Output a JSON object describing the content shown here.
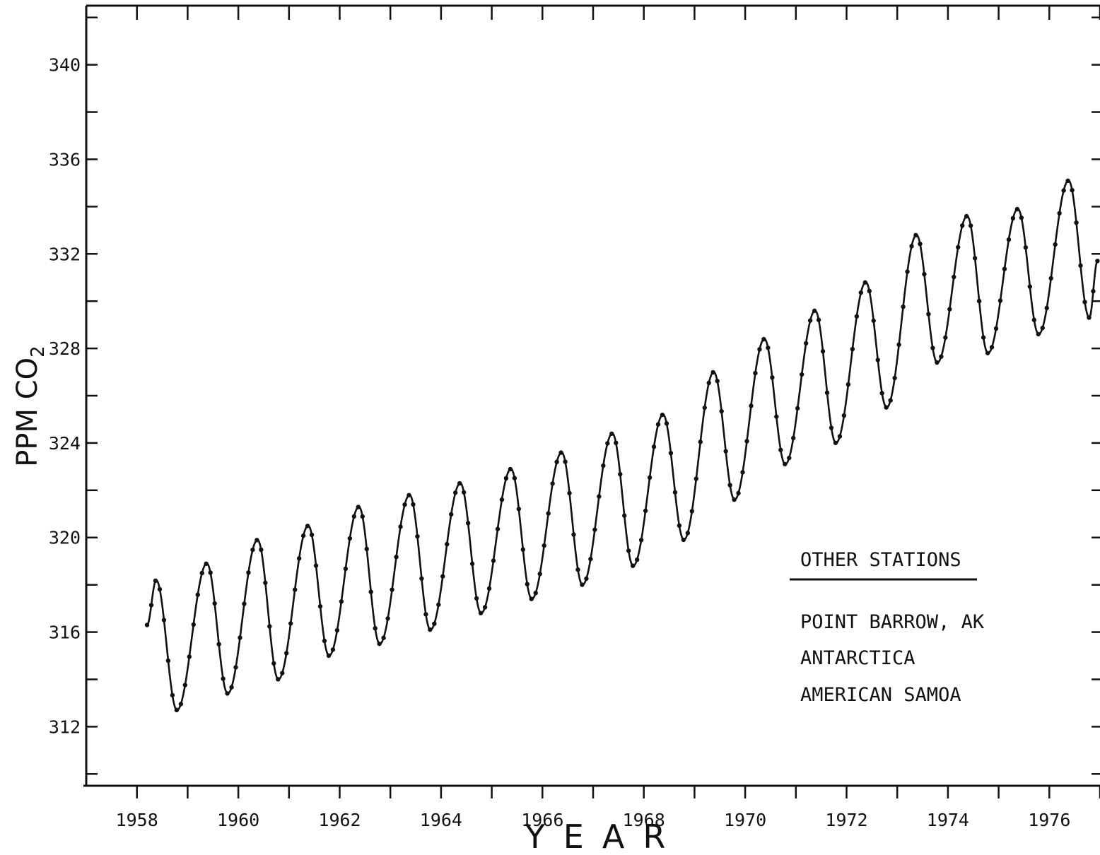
{
  "chart_data": {
    "type": "line",
    "title": "",
    "xlabel": "YEAR",
    "ylabel": "PPM CO",
    "ylabel_subscript": "2",
    "xlim": [
      1957,
      1977
    ],
    "ylim": [
      309.5,
      342.5
    ],
    "x_ticks": [
      1958,
      1960,
      1962,
      1964,
      1966,
      1968,
      1970,
      1972,
      1974,
      1976
    ],
    "x_tick_labels": [
      "1958",
      "1960",
      "1962",
      "1964",
      "1966",
      "1968",
      "1970",
      "1972",
      "1974",
      "1976"
    ],
    "y_ticks": [
      312,
      316,
      320,
      324,
      328,
      332,
      336,
      340
    ],
    "y_tick_labels": [
      "312",
      "316",
      "320",
      "324",
      "328",
      "332",
      "336",
      "340"
    ],
    "grid": false,
    "annual_extremes": [
      {
        "year": 1958,
        "max": 318.2,
        "min": 312.7
      },
      {
        "year": 1959,
        "max": 318.9,
        "min": 313.4
      },
      {
        "year": 1960,
        "max": 319.9,
        "min": 314.0
      },
      {
        "year": 1961,
        "max": 320.5,
        "min": 315.0
      },
      {
        "year": 1962,
        "max": 321.3,
        "min": 315.5
      },
      {
        "year": 1963,
        "max": 321.8,
        "min": 316.1
      },
      {
        "year": 1964,
        "max": 322.3,
        "min": 316.8
      },
      {
        "year": 1965,
        "max": 322.9,
        "min": 317.4
      },
      {
        "year": 1966,
        "max": 323.6,
        "min": 318.0
      },
      {
        "year": 1967,
        "max": 324.4,
        "min": 318.8
      },
      {
        "year": 1968,
        "max": 325.2,
        "min": 319.9
      },
      {
        "year": 1969,
        "max": 327.0,
        "min": 321.6
      },
      {
        "year": 1970,
        "max": 328.4,
        "min": 323.1
      },
      {
        "year": 1971,
        "max": 329.6,
        "min": 324.0
      },
      {
        "year": 1972,
        "max": 330.8,
        "min": 325.5
      },
      {
        "year": 1973,
        "max": 332.8,
        "min": 327.4
      },
      {
        "year": 1974,
        "max": 333.6,
        "min": 327.8
      },
      {
        "year": 1975,
        "max": 333.9,
        "min": 328.6
      },
      {
        "year": 1976,
        "max": 335.1,
        "min": 329.3
      }
    ],
    "series": [
      {
        "start": 1958.2,
        "start_value": 316.3,
        "end": 1976.95,
        "end_value": 331.7
      }
    ],
    "legend": {
      "title": "OTHER STATIONS",
      "entries": [
        "POINT BARROW, AK",
        "ANTARCTICA",
        "AMERICAN SAMOA"
      ],
      "placement": "lower-right"
    }
  }
}
